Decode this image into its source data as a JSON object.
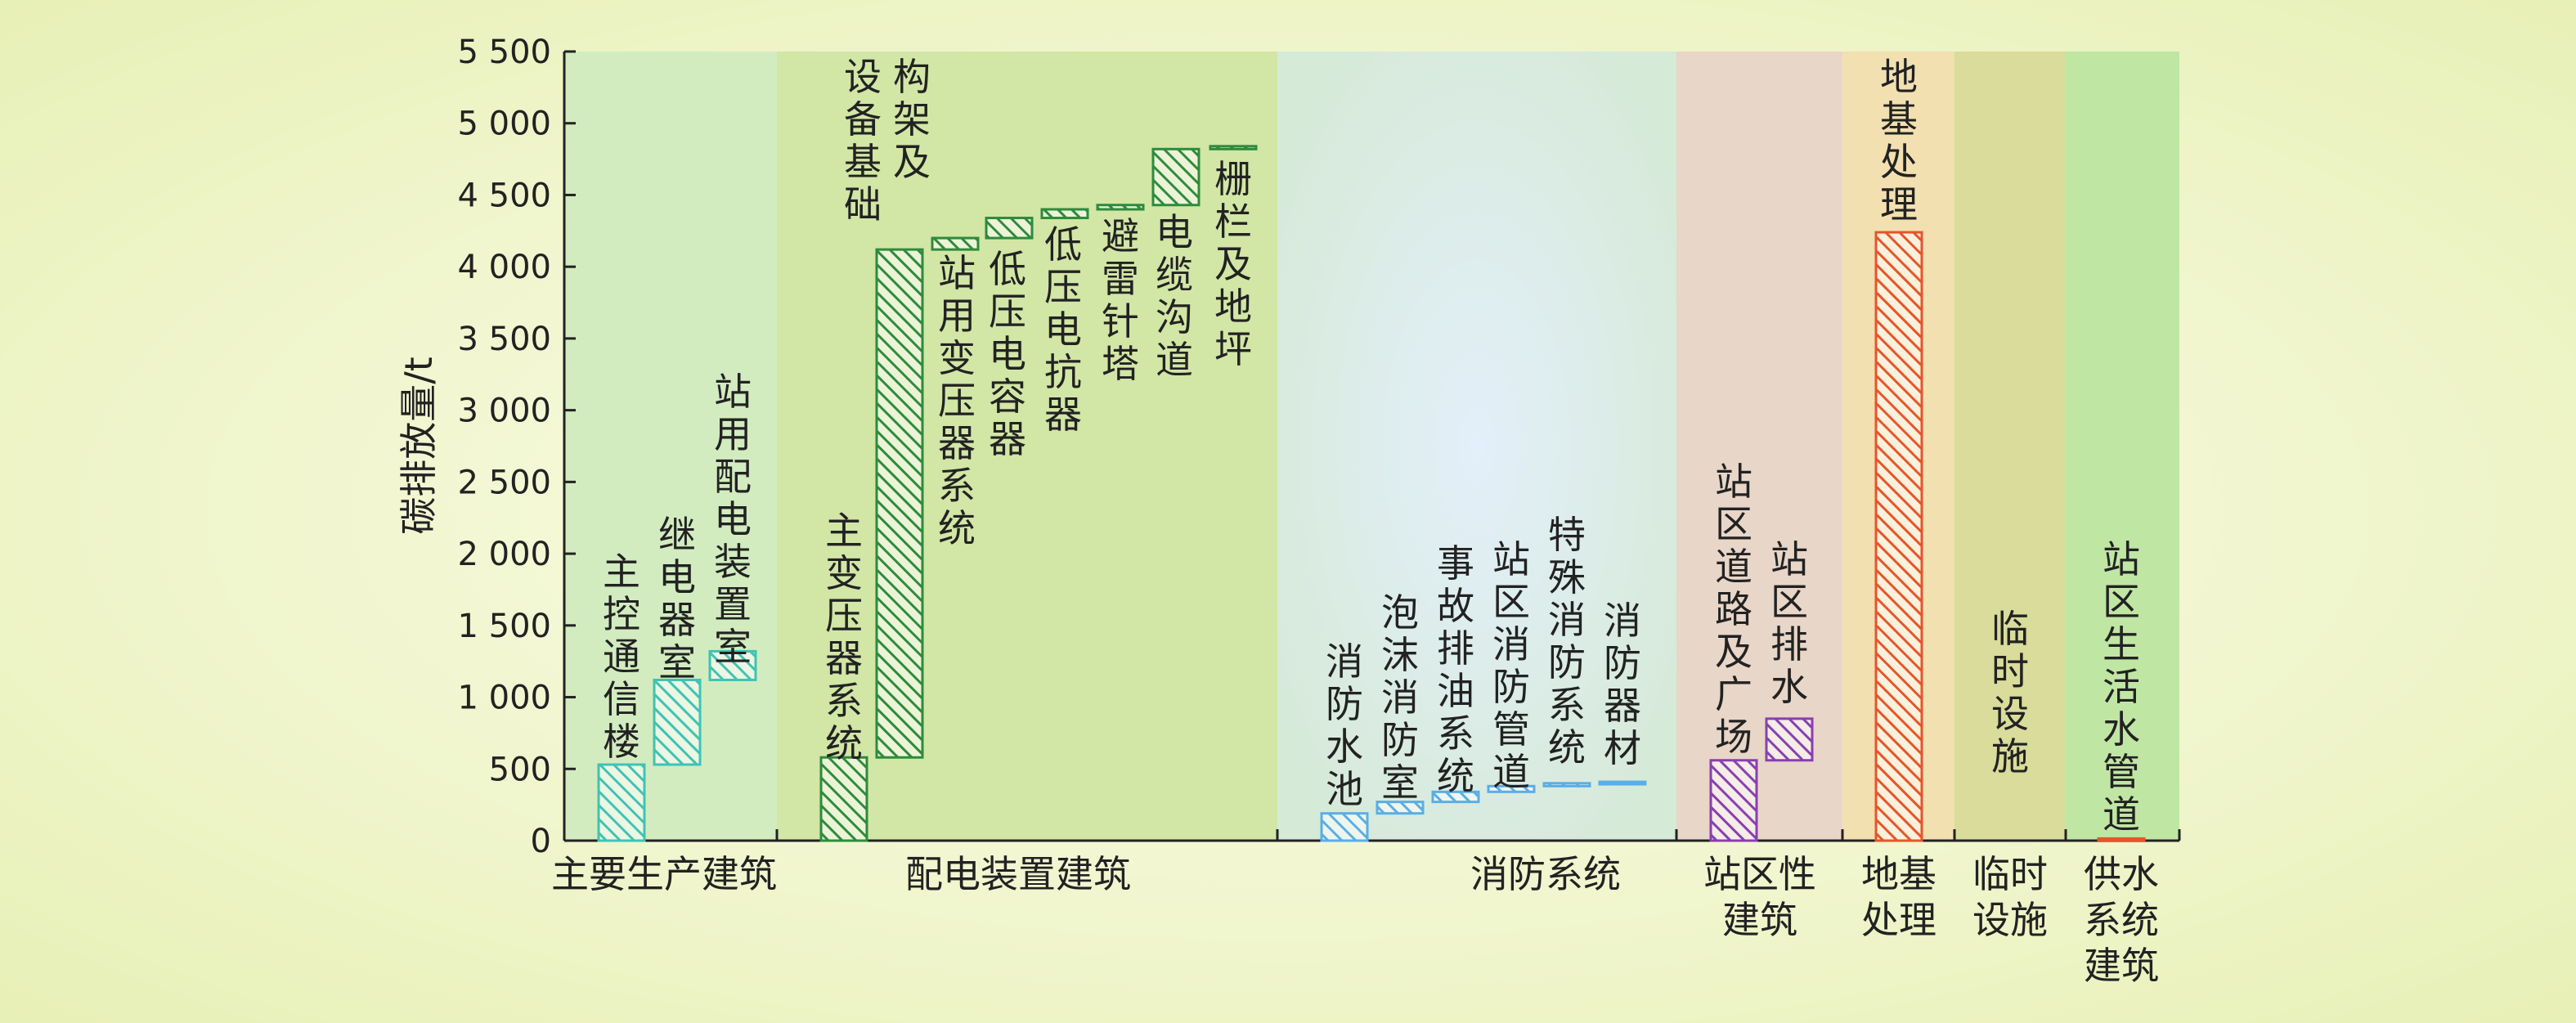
{
  "chart_data": {
    "type": "bar",
    "subtype": "waterfall",
    "ylabel": "碳排放量/t",
    "ylim": [
      0,
      5500
    ],
    "yticks": [
      0,
      500,
      1000,
      1500,
      2000,
      2500,
      3000,
      3500,
      4000,
      4500,
      5000,
      5500
    ],
    "ytick_labels": [
      "0",
      "500",
      "1 000",
      "1 500",
      "2 000",
      "2 500",
      "3 000",
      "3 500",
      "4 000",
      "4 500",
      "5 000",
      "5 500"
    ],
    "colors": {
      "teal": "#3fc3b3",
      "dark_green": "#2e8b3c",
      "light_blue": "#5aaee6",
      "purple": "#8a3fb0",
      "orange_red": "#e8542b"
    },
    "groups": [
      {
        "name": "主要生产建筑",
        "color": "teal",
        "items": [
          {
            "name": "主控通信楼",
            "start": 0,
            "end": 530
          },
          {
            "name": "继电器室",
            "start": 530,
            "end": 1120
          },
          {
            "name": "站用配电装置室",
            "start": 1120,
            "end": 1320
          }
        ]
      },
      {
        "name": "配电装置建筑",
        "color": "dark_green",
        "items": [
          {
            "name": "主变压器系统",
            "start": 0,
            "end": 580
          },
          {
            "name": "构架及设备基础",
            "start": 580,
            "end": 4120
          },
          {
            "name": "站用变压器系统",
            "start": 4120,
            "end": 4200
          },
          {
            "name": "低压电容器",
            "start": 4200,
            "end": 4340
          },
          {
            "name": "低压电抗器",
            "start": 4340,
            "end": 4400
          },
          {
            "name": "避雷针塔",
            "start": 4400,
            "end": 4430
          },
          {
            "name": "电缆沟道",
            "start": 4430,
            "end": 4820
          },
          {
            "name": "栅栏及地坪",
            "start": 4820,
            "end": 4840
          }
        ]
      },
      {
        "name": "消防系统",
        "color": "light_blue",
        "items": [
          {
            "name": "消防水池",
            "start": 0,
            "end": 190
          },
          {
            "name": "泡沫消防室",
            "start": 190,
            "end": 270
          },
          {
            "name": "事故排油系统",
            "start": 270,
            "end": 340
          },
          {
            "name": "站区消防管道",
            "start": 340,
            "end": 380
          },
          {
            "name": "特殊消防系统",
            "start": 380,
            "end": 400
          },
          {
            "name": "消防器材",
            "start": 400,
            "end": 410
          }
        ]
      },
      {
        "name": "站区性建筑",
        "color": "purple",
        "items": [
          {
            "name": "站区道路及广场",
            "start": 0,
            "end": 560
          },
          {
            "name": "站区排水",
            "start": 560,
            "end": 850
          }
        ]
      },
      {
        "name": "地基处理",
        "color": "orange_red",
        "items": [
          {
            "name": "地基处理",
            "start": 0,
            "end": 4240
          }
        ]
      },
      {
        "name": "临时设施",
        "color": "",
        "items": [
          {
            "name": "临时设施",
            "start": 0,
            "end": 0
          }
        ]
      },
      {
        "name": "供水系统建筑",
        "color": "orange_red",
        "items": [
          {
            "name": "站区生活水管道",
            "start": 0,
            "end": 15
          }
        ]
      }
    ]
  }
}
